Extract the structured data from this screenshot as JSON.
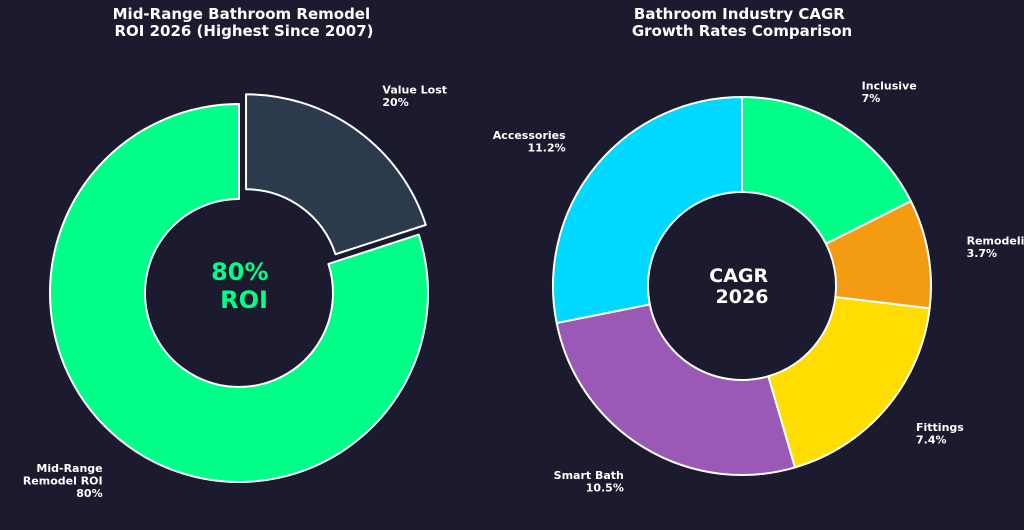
{
  "chart_data": [
    {
      "type": "pie",
      "style": "donut",
      "title": [
        "Mid-Range Bathroom Remodel",
        "ROI 2026 (Highest Since 2007)"
      ],
      "start": "top",
      "direction": "counterclockwise",
      "slices": [
        {
          "label": [
            "Mid-Range",
            "Remodel ROI"
          ],
          "value_text": "80%",
          "value": 80,
          "color": "#00ff88",
          "exploded": false
        },
        {
          "label": [
            "Value Lost"
          ],
          "value_text": "20%",
          "value": 20,
          "color": "#2c3a4e",
          "exploded": true
        }
      ],
      "center_text": [
        "80%",
        "ROI"
      ],
      "center_color": "#00ff88"
    },
    {
      "type": "pie",
      "style": "donut",
      "title": [
        "Bathroom Industry CAGR",
        "Growth Rates Comparison"
      ],
      "start": "top",
      "direction": "clockwise",
      "slices": [
        {
          "label": [
            "Inclusive"
          ],
          "value_text": "7%",
          "value": 7.0,
          "color": "#00ff88"
        },
        {
          "label": [
            "Remodeling"
          ],
          "value_text": "3.7%",
          "value": 3.7,
          "color": "#f39c12"
        },
        {
          "label": [
            "Fittings"
          ],
          "value_text": "7.4%",
          "value": 7.4,
          "color": "#ffdd00"
        },
        {
          "label": [
            "Smart Bath"
          ],
          "value_text": "10.5%",
          "value": 10.5,
          "color": "#9b59b6"
        },
        {
          "label": [
            "Accessories"
          ],
          "value_text": "11.2%",
          "value": 11.2,
          "color": "#00d9ff"
        }
      ],
      "center_text": [
        "CAGR",
        "2026"
      ],
      "center_color": "#ffffff"
    }
  ]
}
